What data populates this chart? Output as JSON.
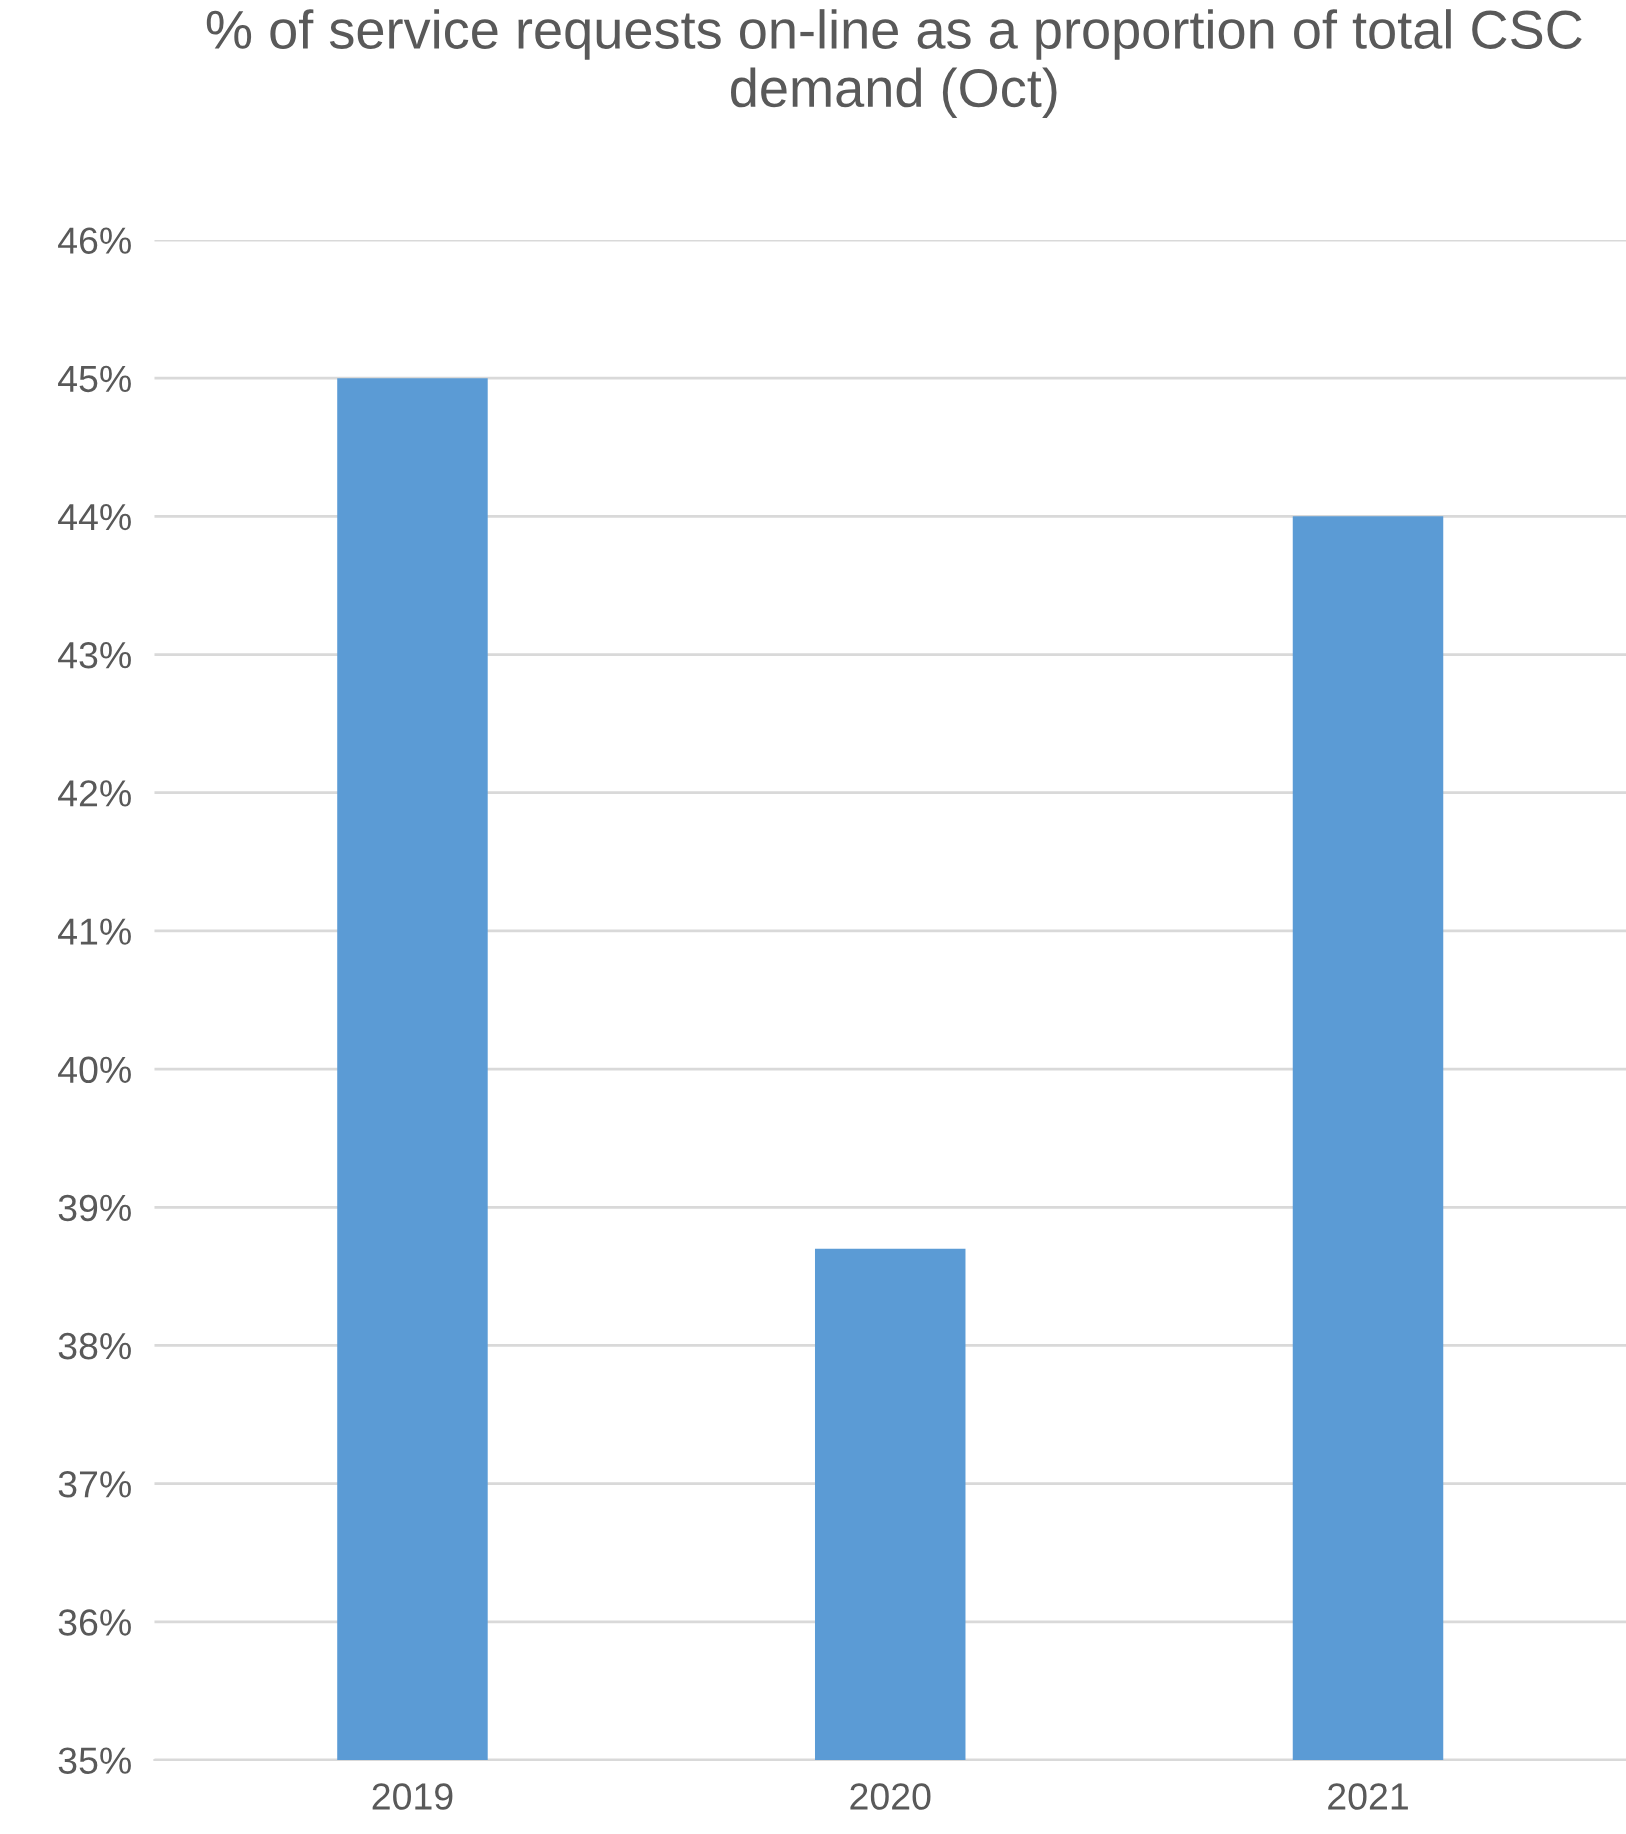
{
  "chart_data": {
    "type": "bar",
    "title": "% of service requests on-line as a proportion of total CSC demand (Oct)",
    "categories": [
      "2019",
      "2020",
      "2021"
    ],
    "values": [
      0.45,
      0.387,
      0.44
    ],
    "color": "#5b9bd5",
    "ylim": [
      0.35,
      0.46
    ],
    "yticks": [
      {
        "value": 0.35,
        "label": "35%"
      },
      {
        "value": 0.36,
        "label": "36%"
      },
      {
        "value": 0.37,
        "label": "37%"
      },
      {
        "value": 0.38,
        "label": "38%"
      },
      {
        "value": 0.39,
        "label": "39%"
      },
      {
        "value": 0.4,
        "label": "40%"
      },
      {
        "value": 0.41,
        "label": "41%"
      },
      {
        "value": 0.42,
        "label": "42%"
      },
      {
        "value": 0.43,
        "label": "43%"
      },
      {
        "value": 0.44,
        "label": "44%"
      },
      {
        "value": 0.45,
        "label": "45%"
      },
      {
        "value": 0.46,
        "label": "46%"
      }
    ],
    "grid": "y"
  }
}
